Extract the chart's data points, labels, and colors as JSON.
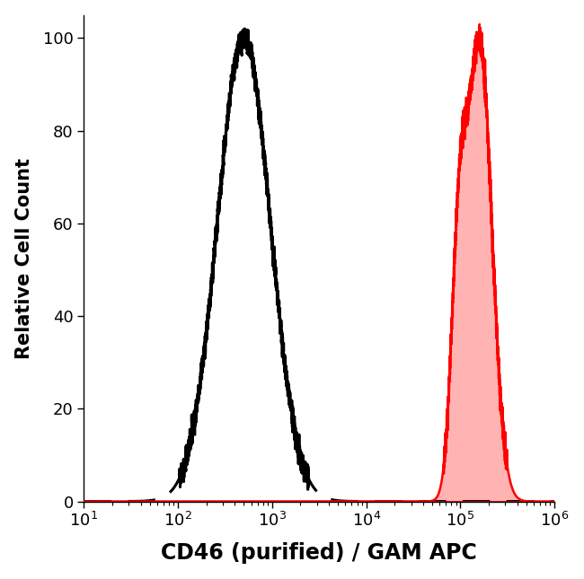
{
  "title": "",
  "xlabel": "CD46 (purified) / GAM APC",
  "ylabel": "Relative Cell Count",
  "xlim_log": [
    10,
    1000000
  ],
  "ylim": [
    0,
    105
  ],
  "yticks": [
    0,
    20,
    40,
    60,
    80,
    100
  ],
  "xlabel_fontsize": 17,
  "ylabel_fontsize": 15,
  "tick_fontsize": 13,
  "background_color": "#ffffff",
  "plot_bg_color": "#ffffff",
  "dashed_peak_log": 500,
  "dashed_sigma_log": 0.28,
  "solid_peak_log": 160000,
  "solid_sigma_log": 0.13,
  "dashed_color": "#000000",
  "solid_color": "#ff0000",
  "solid_fill_color": "#ffb3b3",
  "baseline_color": "#cc0000"
}
